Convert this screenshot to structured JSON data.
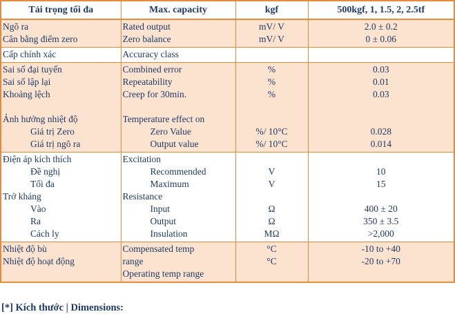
{
  "colors": {
    "border_orange": "#E9893C",
    "row_fill_peach": "#FBE3D0",
    "text_navy": "#1F3A66",
    "header_background": "#FFFFFF"
  },
  "page": {
    "footnote": "[*] Kích thước | Dimensions:"
  },
  "table": {
    "header": [
      "Tải trọng tối đa",
      "Max. capacity",
      "kgf",
      "500kgf, 1, 1.5, 2, 2.5tf"
    ],
    "rows": [
      {
        "name": "rated-output-zero-balance",
        "shaded": true,
        "cells": [
          [
            "Ngõ ra",
            "Cân bằng điểm zero"
          ],
          [
            "Rated output",
            "Zero balance"
          ],
          [
            "mV/ V",
            "mV/ V"
          ],
          [
            "2.0 ± 0.2",
            "0 ± 0.06"
          ]
        ]
      },
      {
        "name": "accuracy-class",
        "shaded": false,
        "cells": [
          [
            "Cấp chính xác"
          ],
          [
            "Accuracy class"
          ],
          [
            ""
          ],
          [
            ""
          ]
        ]
      },
      {
        "name": "errors-and-temperature-effect",
        "shaded": true,
        "cells": [
          [
            "Sai số đại tuyến",
            "Sai số lập lại",
            "Khoảng lệch",
            "",
            "Ảnh hưởng nhiệt độ",
            {
              "text": "Giá trị Zero",
              "indent": true
            },
            {
              "text": "Giá trị ngõ ra",
              "indent": true
            }
          ],
          [
            "Combined error",
            "Repeatability",
            "Creep for 30min.",
            "",
            "Temperature effect on",
            {
              "text": "Zero Value",
              "indent": true
            },
            {
              "text": "Output value",
              "indent": true
            }
          ],
          [
            "%",
            "%",
            "%",
            "",
            "",
            "%/ 10°C",
            "%/ 10°C"
          ],
          [
            "0.03",
            "0.01",
            "0.03",
            "",
            "",
            "0.028",
            "0.014"
          ]
        ]
      },
      {
        "name": "excitation-resistance",
        "shaded": false,
        "cells": [
          [
            "Điện áp kích thích",
            {
              "text": "Đề nghị",
              "indent": true
            },
            {
              "text": "Tối đa",
              "indent": true
            },
            "Trở kháng",
            {
              "text": "Vào",
              "indent": true
            },
            {
              "text": "Ra",
              "indent": true
            },
            {
              "text": "Cách ly",
              "indent": true
            }
          ],
          [
            "Excitation",
            {
              "text": "Recommended",
              "indent": true
            },
            {
              "text": "Maximum",
              "indent": true
            },
            "Resistance",
            {
              "text": "Input",
              "indent": true
            },
            {
              "text": "Output",
              "indent": true
            },
            {
              "text": "Insulation",
              "indent": true
            }
          ],
          [
            "",
            "V",
            "V",
            "",
            "Ω",
            "Ω",
            "MΩ"
          ],
          [
            "",
            "10",
            "15",
            "",
            "400 ± 20",
            "350 ± 3.5",
            ">2,000"
          ]
        ]
      },
      {
        "name": "temperature-ranges",
        "shaded": true,
        "cells": [
          [
            "Nhiệt độ bù",
            "Nhiệt độ hoạt động"
          ],
          [
            {
              "text": "Compensated temp",
              "wrap": true
            },
            {
              "text": "range",
              "wrap": true
            },
            {
              "text": "Operating temp range",
              "wrap": true
            }
          ],
          [
            "°C",
            "°C"
          ],
          [
            "-10 to +40",
            "-20 to +70"
          ]
        ]
      }
    ]
  }
}
